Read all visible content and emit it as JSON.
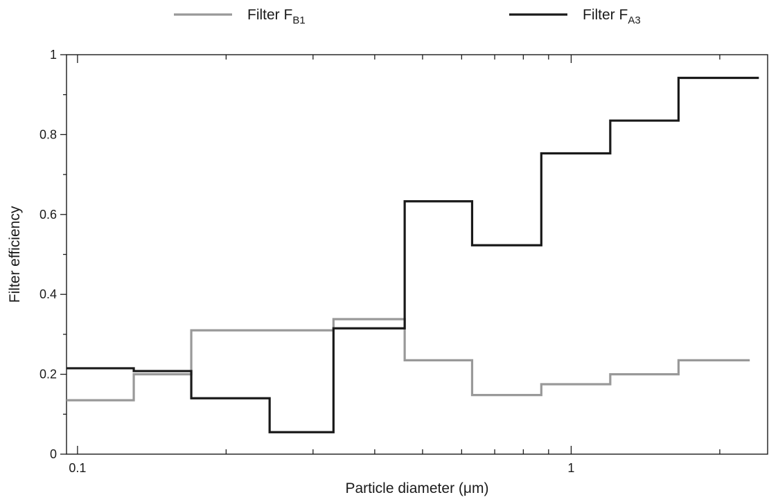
{
  "chart_data": {
    "type": "line",
    "step": true,
    "xscale": "log",
    "xlabel": "Particle diameter (μm)",
    "ylabel": "Filter efficiency",
    "xlim": [
      0.095,
      2.5
    ],
    "ylim": [
      0,
      1
    ],
    "grid": false,
    "legend_position": "top",
    "x_tick_labels": [
      {
        "value": 0.1,
        "label": "0.1"
      },
      {
        "value": 1,
        "label": "1"
      }
    ],
    "x_minor_ticks": [
      0.2,
      0.3,
      0.4,
      0.5,
      0.6,
      0.7,
      0.8,
      0.9,
      2
    ],
    "y_tick_labels": [
      {
        "value": 0,
        "label": "0"
      },
      {
        "value": 0.2,
        "label": "0.2"
      },
      {
        "value": 0.4,
        "label": "0.4"
      },
      {
        "value": 0.6,
        "label": "0.6"
      },
      {
        "value": 0.8,
        "label": "0.8"
      },
      {
        "value": 1,
        "label": "1"
      }
    ],
    "y_minor_ticks": [
      0.1,
      0.3,
      0.5,
      0.7,
      0.9
    ],
    "series": [
      {
        "name": "Filter FB1",
        "legend_main": "Filter F",
        "legend_sub": "B1",
        "color": "#999999",
        "edges": [
          0.095,
          0.13,
          0.17,
          0.33,
          0.46,
          0.63,
          0.87,
          1.2,
          1.65,
          2.3
        ],
        "values": [
          0.135,
          0.2,
          0.31,
          0.338,
          0.235,
          0.148,
          0.175,
          0.2,
          0.235
        ]
      },
      {
        "name": "Filter FA3",
        "legend_main": "Filter F",
        "legend_sub": "A3",
        "color": "#1a1a1a",
        "edges": [
          0.095,
          0.13,
          0.17,
          0.245,
          0.33,
          0.46,
          0.63,
          0.87,
          1.2,
          1.65,
          2.4
        ],
        "values": [
          0.215,
          0.208,
          0.14,
          0.055,
          0.315,
          0.633,
          0.523,
          0.753,
          0.835,
          0.942
        ]
      }
    ]
  }
}
